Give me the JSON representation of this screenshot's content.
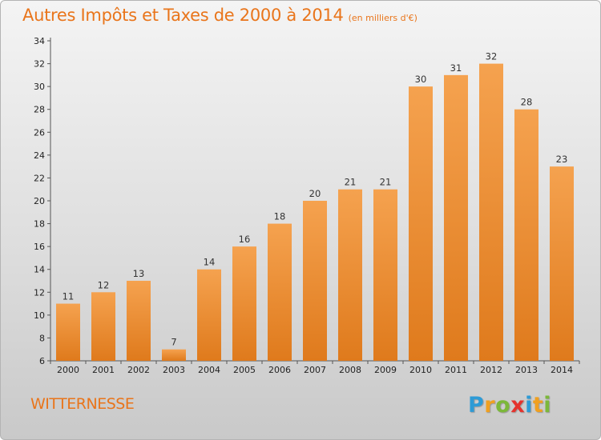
{
  "title": "Autres Impôts et Taxes de 2000 à 2014",
  "subtitle": "(en milliers d'€)",
  "commune": "WITTERNESSE",
  "logo": {
    "letters": [
      "P",
      "r",
      "o",
      "x",
      "i",
      "t",
      "i"
    ],
    "colors": [
      "#2e9bd6",
      "#f0a020",
      "#7cb83a",
      "#e5322d",
      "#2e9bd6",
      "#f0a020",
      "#7cb83a"
    ]
  },
  "colors": {
    "accent": "#e9751b",
    "bar_top": "#f5a24f",
    "bar_bottom": "#df7a1c"
  },
  "chart_data": {
    "type": "bar",
    "categories": [
      "2000",
      "2001",
      "2002",
      "2003",
      "2004",
      "2005",
      "2006",
      "2007",
      "2008",
      "2009",
      "2010",
      "2011",
      "2012",
      "2013",
      "2014"
    ],
    "values": [
      11,
      12,
      13,
      7,
      14,
      16,
      18,
      20,
      21,
      21,
      30,
      31,
      32,
      28,
      23
    ],
    "ylim": [
      6,
      34
    ],
    "yticks": [
      6,
      8,
      10,
      12,
      14,
      16,
      18,
      20,
      22,
      24,
      26,
      28,
      30,
      32,
      34
    ],
    "grid": false,
    "data_labels": true
  }
}
